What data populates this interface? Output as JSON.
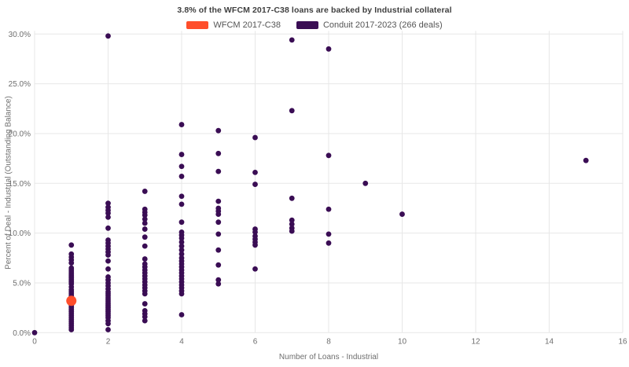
{
  "title": "3.8% of the WFCM 2017-C38 loans are backed by Industrial collateral",
  "legend": {
    "items": [
      {
        "id": "wfcm",
        "label": "WFCM 2017-C38",
        "color": "#ff4e2b"
      },
      {
        "id": "conduit",
        "label": "Conduit 2017-2023 (266 deals)",
        "color": "#3a0d54"
      }
    ]
  },
  "chart_data": {
    "type": "scatter",
    "title": "3.8% of the WFCM 2017-C38 loans are backed by Industrial collateral",
    "xlabel": "Number of Loans - Industrial",
    "ylabel": "Percent of Deal - Industrial (Outstanding Balance)",
    "xlim": [
      0,
      16
    ],
    "ylim": [
      0,
      30
    ],
    "x_ticks": [
      0,
      2,
      4,
      6,
      8,
      10,
      12,
      14,
      16
    ],
    "y_ticks": [
      0,
      5,
      10,
      15,
      20,
      25,
      30
    ],
    "y_tick_suffix": ".0%",
    "grid": true,
    "grid_color": "#e7e7e7",
    "tick_label_color": "#6e6e6e",
    "legend_position": "top-center",
    "series": [
      {
        "name": "Conduit 2017-2023 (266 deals)",
        "color": "#3a0d54",
        "marker_radius": 3.4,
        "points": [
          [
            0,
            0.0
          ],
          [
            1,
            8.8
          ],
          [
            1,
            7.9
          ],
          [
            1,
            7.6
          ],
          [
            1,
            7.3
          ],
          [
            1,
            7.0
          ],
          [
            1,
            6.5
          ],
          [
            1,
            6.3
          ],
          [
            1,
            6.1
          ],
          [
            1,
            5.9
          ],
          [
            1,
            5.7
          ],
          [
            1,
            5.5
          ],
          [
            1,
            5.3
          ],
          [
            1,
            5.1
          ],
          [
            1,
            4.9
          ],
          [
            1,
            4.6
          ],
          [
            1,
            4.3
          ],
          [
            1,
            4.1
          ],
          [
            1,
            3.9
          ],
          [
            1,
            3.7
          ],
          [
            1,
            3.5
          ],
          [
            1,
            3.3
          ],
          [
            1,
            3.1
          ],
          [
            1,
            2.9
          ],
          [
            1,
            2.7
          ],
          [
            1,
            2.5
          ],
          [
            1,
            2.3
          ],
          [
            1,
            2.1
          ],
          [
            1,
            1.9
          ],
          [
            1,
            1.7
          ],
          [
            1,
            1.5
          ],
          [
            1,
            1.3
          ],
          [
            1,
            1.1
          ],
          [
            1,
            0.9
          ],
          [
            1,
            0.7
          ],
          [
            1,
            0.5
          ],
          [
            1,
            0.3
          ],
          [
            2,
            29.8
          ],
          [
            2,
            13.0
          ],
          [
            2,
            12.6
          ],
          [
            2,
            12.3
          ],
          [
            2,
            12.0
          ],
          [
            2,
            11.6
          ],
          [
            2,
            10.5
          ],
          [
            2,
            9.3
          ],
          [
            2,
            9.0
          ],
          [
            2,
            8.7
          ],
          [
            2,
            8.4
          ],
          [
            2,
            8.1
          ],
          [
            2,
            7.8
          ],
          [
            2,
            7.2
          ],
          [
            2,
            6.4
          ],
          [
            2,
            5.6
          ],
          [
            2,
            5.3
          ],
          [
            2,
            5.0
          ],
          [
            2,
            4.7
          ],
          [
            2,
            4.4
          ],
          [
            2,
            4.1
          ],
          [
            2,
            3.9
          ],
          [
            2,
            3.7
          ],
          [
            2,
            3.5
          ],
          [
            2,
            3.3
          ],
          [
            2,
            3.1
          ],
          [
            2,
            2.9
          ],
          [
            2,
            2.7
          ],
          [
            2,
            2.5
          ],
          [
            2,
            2.3
          ],
          [
            2,
            2.1
          ],
          [
            2,
            1.9
          ],
          [
            2,
            1.7
          ],
          [
            2,
            1.5
          ],
          [
            2,
            1.2
          ],
          [
            2,
            0.9
          ],
          [
            2,
            0.3
          ],
          [
            3,
            14.2
          ],
          [
            3,
            12.4
          ],
          [
            3,
            12.1
          ],
          [
            3,
            11.8
          ],
          [
            3,
            11.4
          ],
          [
            3,
            11.0
          ],
          [
            3,
            10.4
          ],
          [
            3,
            9.6
          ],
          [
            3,
            8.7
          ],
          [
            3,
            7.4
          ],
          [
            3,
            6.9
          ],
          [
            3,
            6.6
          ],
          [
            3,
            6.3
          ],
          [
            3,
            6.0
          ],
          [
            3,
            5.7
          ],
          [
            3,
            5.4
          ],
          [
            3,
            5.1
          ],
          [
            3,
            4.8
          ],
          [
            3,
            4.5
          ],
          [
            3,
            4.2
          ],
          [
            3,
            3.9
          ],
          [
            3,
            2.9
          ],
          [
            3,
            2.2
          ],
          [
            3,
            1.9
          ],
          [
            3,
            1.6
          ],
          [
            3,
            1.2
          ],
          [
            4,
            20.9
          ],
          [
            4,
            17.9
          ],
          [
            4,
            16.7
          ],
          [
            4,
            15.7
          ],
          [
            4,
            13.7
          ],
          [
            4,
            12.9
          ],
          [
            4,
            11.1
          ],
          [
            4,
            10.1
          ],
          [
            4,
            9.8
          ],
          [
            4,
            9.5
          ],
          [
            4,
            9.1
          ],
          [
            4,
            8.7
          ],
          [
            4,
            8.3
          ],
          [
            4,
            7.9
          ],
          [
            4,
            7.5
          ],
          [
            4,
            7.2
          ],
          [
            4,
            6.9
          ],
          [
            4,
            6.6
          ],
          [
            4,
            6.3
          ],
          [
            4,
            6.0
          ],
          [
            4,
            5.7
          ],
          [
            4,
            5.4
          ],
          [
            4,
            5.1
          ],
          [
            4,
            4.8
          ],
          [
            4,
            4.5
          ],
          [
            4,
            4.2
          ],
          [
            4,
            3.9
          ],
          [
            4,
            1.8
          ],
          [
            5,
            20.3
          ],
          [
            5,
            18.0
          ],
          [
            5,
            16.2
          ],
          [
            5,
            13.2
          ],
          [
            5,
            12.5
          ],
          [
            5,
            12.2
          ],
          [
            5,
            11.9
          ],
          [
            5,
            11.1
          ],
          [
            5,
            9.9
          ],
          [
            5,
            8.3
          ],
          [
            5,
            6.8
          ],
          [
            5,
            5.3
          ],
          [
            5,
            4.9
          ],
          [
            6,
            19.6
          ],
          [
            6,
            16.1
          ],
          [
            6,
            14.9
          ],
          [
            6,
            10.4
          ],
          [
            6,
            10.1
          ],
          [
            6,
            9.7
          ],
          [
            6,
            9.4
          ],
          [
            6,
            9.1
          ],
          [
            6,
            8.8
          ],
          [
            6,
            6.4
          ],
          [
            7,
            29.4
          ],
          [
            7,
            22.3
          ],
          [
            7,
            13.5
          ],
          [
            7,
            11.3
          ],
          [
            7,
            10.9
          ],
          [
            7,
            10.5
          ],
          [
            7,
            10.2
          ],
          [
            8,
            28.5
          ],
          [
            8,
            17.8
          ],
          [
            8,
            12.4
          ],
          [
            8,
            9.9
          ],
          [
            8,
            9.0
          ],
          [
            9,
            15.0
          ],
          [
            10,
            11.9
          ],
          [
            15,
            17.3
          ]
        ]
      },
      {
        "name": "WFCM 2017-C38",
        "color": "#ff4e2b",
        "marker_radius": 6.5,
        "points": [
          [
            1,
            3.2
          ]
        ]
      }
    ]
  }
}
